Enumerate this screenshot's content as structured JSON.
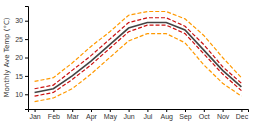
{
  "chart_data": {
    "type": "line",
    "categories": [
      "Jan",
      "Feb",
      "Mar",
      "Apr",
      "May",
      "Jun",
      "Jul",
      "Aug",
      "Sep",
      "Oct",
      "Nov",
      "Dec"
    ],
    "series": [
      {
        "color": "#ff9900",
        "line_style": "dashed",
        "values": [
          8.0,
          9.0,
          11.5,
          15.5,
          20.0,
          24.5,
          26.5,
          26.5,
          24.0,
          18.0,
          13.0,
          9.5
        ]
      },
      {
        "color": "#ff9900",
        "line_style": "dashed",
        "values": [
          13.5,
          14.5,
          18.5,
          23.0,
          27.0,
          31.5,
          32.5,
          32.5,
          30.5,
          26.0,
          20.0,
          14.5
        ]
      },
      {
        "color": "#cc1111",
        "line_style": "dashed",
        "values": [
          9.5,
          10.5,
          14.0,
          18.0,
          22.5,
          27.0,
          28.8,
          28.8,
          26.5,
          21.0,
          15.5,
          11.0
        ]
      },
      {
        "color": "#cc1111",
        "line_style": "dashed",
        "values": [
          11.5,
          12.5,
          16.5,
          20.5,
          25.0,
          29.5,
          30.8,
          30.8,
          28.5,
          23.5,
          17.5,
          13.0
        ]
      },
      {
        "color": "#444444",
        "line_style": "solid",
        "values": [
          10.5,
          11.5,
          15.0,
          19.0,
          23.5,
          28.0,
          29.5,
          29.5,
          27.5,
          22.0,
          16.5,
          12.0
        ]
      }
    ],
    "y_label": "Monthly Ave Temp (°C)",
    "ylim": [
      6,
      34
    ],
    "yticks": [
      10,
      15,
      20,
      25,
      30
    ],
    "grid": false
  }
}
